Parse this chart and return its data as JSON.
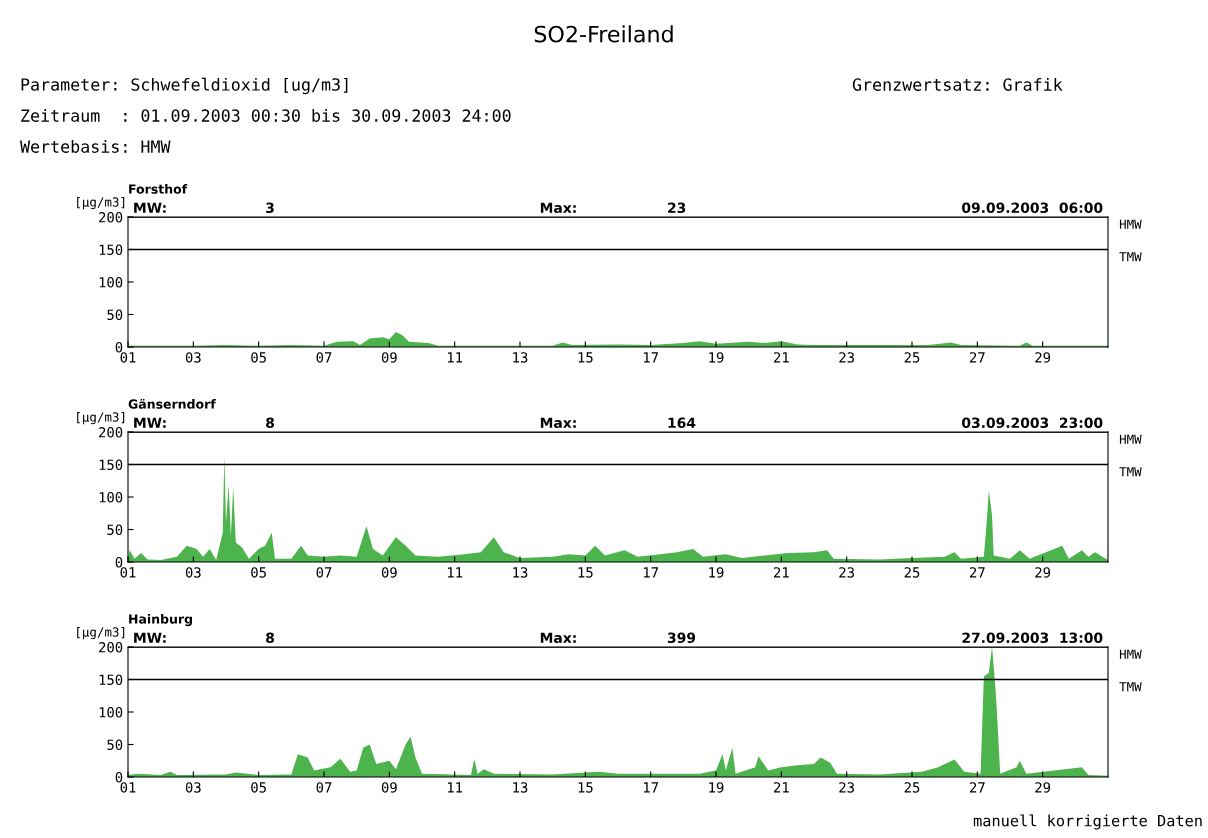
{
  "chart_data": [
    {
      "type": "area",
      "title": "SO2-Freiland",
      "subtitle": "Forsthof",
      "ylabel": "[μg/m3]",
      "annotations": [
        "Parameter: Schwefeldioxid [ug/m3]",
        "Zeitraum  : 01.09.2003 00:30 bis 30.09.2003 24:00",
        "Wertebasis: HMW",
        "Grenzwertsatz: Grafik",
        "MW:",
        "3",
        "Max:",
        "23",
        "09.09.2003  06:00"
      ],
      "x": [
        1,
        3,
        4,
        5,
        6,
        7,
        7.4,
        7.9,
        8.1,
        8.4,
        8.8,
        9.0,
        9.2,
        9.4,
        9.6,
        10.2,
        10.5,
        14.0,
        14.3,
        14.6,
        16,
        17,
        18,
        18.5,
        19,
        20,
        20.5,
        21,
        21.5,
        22,
        25.5,
        26.2,
        26.5,
        28.3,
        28.5,
        28.7,
        31
      ],
      "series": [
        {
          "color": "#4db34d",
          "values": [
            2,
            2,
            3,
            2,
            3,
            2,
            8,
            9,
            3,
            13,
            15,
            12,
            23,
            18,
            8,
            6,
            2,
            2,
            7,
            3,
            4,
            3,
            6,
            9,
            5,
            8,
            6,
            9,
            4,
            3,
            3,
            7,
            3,
            2,
            7,
            2,
            2
          ]
        }
      ],
      "xlim": [
        1,
        31
      ],
      "xticks": [
        {
          "value": 1,
          "label": "01"
        },
        {
          "value": 3,
          "label": "03"
        },
        {
          "value": 5,
          "label": "05"
        },
        {
          "value": 7,
          "label": "07"
        },
        {
          "value": 9,
          "label": "09"
        },
        {
          "value": 11,
          "label": "11"
        },
        {
          "value": 13,
          "label": "13"
        },
        {
          "value": 15,
          "label": "15"
        },
        {
          "value": 17,
          "label": "17"
        },
        {
          "value": 19,
          "label": "19"
        },
        {
          "value": 21,
          "label": "21"
        },
        {
          "value": 23,
          "label": "23"
        },
        {
          "value": 25,
          "label": "25"
        },
        {
          "value": 27,
          "label": "27"
        },
        {
          "value": 29,
          "label": "29"
        }
      ],
      "ylim": [
        0,
        200
      ],
      "yticks": [
        0,
        50,
        100,
        150,
        200
      ],
      "ref_lines": [
        {
          "axis": "y",
          "value": 200,
          "label": "HMW",
          "color": "#000000"
        },
        {
          "axis": "y",
          "value": 150,
          "label": "TMW",
          "color": "#000000"
        }
      ],
      "grid": false,
      "legend": false
    },
    {
      "type": "area",
      "subtitle": "Gänserndorf",
      "ylabel": "[μg/m3]",
      "annotations": [
        "MW:",
        "8",
        "Max:",
        "164",
        "03.09.2003  23:00"
      ],
      "x": [
        1,
        1.05,
        1.2,
        1.4,
        1.6,
        2.0,
        2.5,
        2.8,
        3.1,
        3.3,
        3.5,
        3.7,
        3.9,
        3.95,
        4.0,
        4.08,
        4.15,
        4.22,
        4.3,
        4.5,
        4.7,
        5.0,
        5.2,
        5.4,
        5.5,
        6.0,
        6.3,
        6.5,
        7.0,
        7.5,
        8.0,
        8.3,
        8.5,
        8.8,
        9.2,
        9.5,
        9.8,
        10.5,
        11.3,
        11.8,
        12.2,
        12.5,
        13,
        14,
        14.5,
        15.0,
        15.3,
        15.6,
        16.2,
        16.6,
        17.3,
        17.8,
        18.3,
        18.6,
        19.3,
        19.8,
        20.5,
        21.2,
        22.0,
        22.4,
        22.6,
        24,
        25,
        26.0,
        26.3,
        26.5,
        27.2,
        27.3,
        27.35,
        27.45,
        27.5,
        28.0,
        28.3,
        28.6,
        29.6,
        29.8,
        30.2,
        30.4,
        30.6,
        31
      ],
      "series": [
        {
          "color": "#4db34d",
          "values": [
            3,
            18,
            5,
            14,
            4,
            3,
            8,
            25,
            20,
            8,
            20,
            3,
            45,
            164,
            60,
            118,
            40,
            115,
            30,
            22,
            5,
            20,
            25,
            45,
            5,
            5,
            25,
            10,
            8,
            10,
            8,
            55,
            20,
            10,
            38,
            25,
            10,
            8,
            12,
            15,
            38,
            15,
            6,
            8,
            12,
            10,
            25,
            10,
            18,
            8,
            12,
            15,
            20,
            8,
            12,
            6,
            10,
            14,
            15,
            18,
            5,
            4,
            6,
            8,
            15,
            5,
            8,
            70,
            110,
            72,
            10,
            5,
            18,
            5,
            25,
            5,
            18,
            8,
            15,
            3
          ]
        }
      ],
      "xlim": [
        1,
        31
      ],
      "xticks": [
        {
          "value": 1,
          "label": "01"
        },
        {
          "value": 3,
          "label": "03"
        },
        {
          "value": 5,
          "label": "05"
        },
        {
          "value": 7,
          "label": "07"
        },
        {
          "value": 9,
          "label": "09"
        },
        {
          "value": 11,
          "label": "11"
        },
        {
          "value": 13,
          "label": "13"
        },
        {
          "value": 15,
          "label": "15"
        },
        {
          "value": 17,
          "label": "17"
        },
        {
          "value": 19,
          "label": "19"
        },
        {
          "value": 21,
          "label": "21"
        },
        {
          "value": 23,
          "label": "23"
        },
        {
          "value": 25,
          "label": "25"
        },
        {
          "value": 27,
          "label": "27"
        },
        {
          "value": 29,
          "label": "29"
        }
      ],
      "ylim": [
        0,
        200
      ],
      "yticks": [
        0,
        50,
        100,
        150,
        200
      ],
      "ref_lines": [
        {
          "axis": "y",
          "value": 200,
          "label": "HMW",
          "color": "#000000"
        },
        {
          "axis": "y",
          "value": 150,
          "label": "TMW",
          "color": "#000000"
        }
      ],
      "grid": false,
      "legend": false
    },
    {
      "type": "area",
      "subtitle": "Hainburg",
      "ylabel": "[μg/m3]",
      "annotations": [
        "manuell korrigierte Daten",
        "MW:",
        "8",
        "Max:",
        "399",
        "27.09.2003  13:00"
      ],
      "x": [
        1,
        1.3,
        2,
        2.3,
        2.5,
        4,
        4.3,
        5,
        6.0,
        6.2,
        6.5,
        6.7,
        7.2,
        7.5,
        7.8,
        8.0,
        8.2,
        8.4,
        8.6,
        9.0,
        9.2,
        9.5,
        9.65,
        9.8,
        10,
        11.5,
        11.6,
        11.7,
        11.9,
        12.2,
        14,
        15.4,
        16,
        18.5,
        19.0,
        19.2,
        19.3,
        19.5,
        19.6,
        20.2,
        20.3,
        20.6,
        21.0,
        21.5,
        22.0,
        22.2,
        22.5,
        22.7,
        24,
        25.3,
        25.8,
        26.3,
        26.6,
        27.1,
        27.2,
        27.35,
        27.45,
        27.55,
        27.6,
        27.7,
        28.2,
        28.3,
        28.5,
        30.2,
        30.4,
        31
      ],
      "series": [
        {
          "color": "#4db34d",
          "values": [
            3,
            5,
            3,
            8,
            3,
            4,
            7,
            3,
            4,
            35,
            30,
            10,
            15,
            28,
            8,
            10,
            45,
            50,
            20,
            25,
            12,
            50,
            62,
            30,
            5,
            3,
            28,
            5,
            12,
            5,
            4,
            8,
            5,
            5,
            10,
            35,
            10,
            45,
            5,
            15,
            32,
            10,
            15,
            18,
            20,
            30,
            22,
            5,
            4,
            8,
            15,
            27,
            8,
            5,
            155,
            160,
            200,
            140,
            100,
            5,
            15,
            25,
            5,
            15,
            3,
            2
          ]
        }
      ],
      "xlim": [
        1,
        31
      ],
      "xticks": [
        {
          "value": 1,
          "label": "01"
        },
        {
          "value": 3,
          "label": "03"
        },
        {
          "value": 5,
          "label": "05"
        },
        {
          "value": 7,
          "label": "07"
        },
        {
          "value": 9,
          "label": "09"
        },
        {
          "value": 11,
          "label": "11"
        },
        {
          "value": 13,
          "label": "13"
        },
        {
          "value": 15,
          "label": "15"
        },
        {
          "value": 17,
          "label": "17"
        },
        {
          "value": 19,
          "label": "19"
        },
        {
          "value": 21,
          "label": "21"
        },
        {
          "value": 23,
          "label": "23"
        },
        {
          "value": 25,
          "label": "25"
        },
        {
          "value": 27,
          "label": "27"
        },
        {
          "value": 29,
          "label": "29"
        }
      ],
      "ylim": [
        0,
        200
      ],
      "yticks": [
        0,
        50,
        100,
        150,
        200
      ],
      "ref_lines": [
        {
          "axis": "y",
          "value": 200,
          "label": "HMW",
          "color": "#000000"
        },
        {
          "axis": "y",
          "value": 150,
          "label": "TMW",
          "color": "#000000"
        }
      ],
      "grid": false,
      "legend": false
    }
  ]
}
